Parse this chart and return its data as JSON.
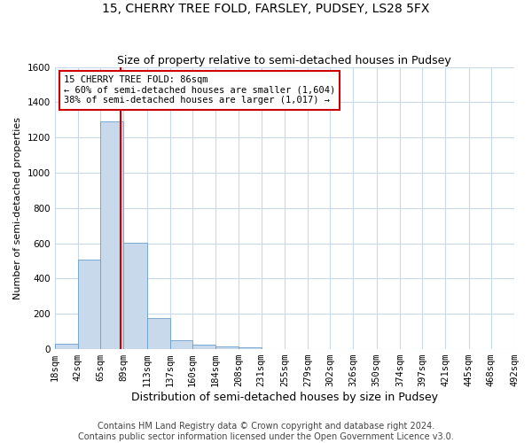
{
  "title": "15, CHERRY TREE FOLD, FARSLEY, PUDSEY, LS28 5FX",
  "subtitle": "Size of property relative to semi-detached houses in Pudsey",
  "xlabel": "Distribution of semi-detached houses by size in Pudsey",
  "ylabel": "Number of semi-detached properties",
  "footnote1": "Contains HM Land Registry data © Crown copyright and database right 2024.",
  "footnote2": "Contains public sector information licensed under the Open Government Licence v3.0.",
  "bin_labels": [
    "18sqm",
    "42sqm",
    "65sqm",
    "89sqm",
    "113sqm",
    "137sqm",
    "160sqm",
    "184sqm",
    "208sqm",
    "231sqm",
    "255sqm",
    "279sqm",
    "302sqm",
    "326sqm",
    "350sqm",
    "374sqm",
    "397sqm",
    "421sqm",
    "445sqm",
    "468sqm",
    "492sqm"
  ],
  "bin_edges": [
    18,
    42,
    65,
    89,
    113,
    137,
    160,
    184,
    208,
    231,
    255,
    279,
    302,
    326,
    350,
    374,
    397,
    421,
    445,
    468,
    492
  ],
  "bar_heights": [
    30,
    510,
    1290,
    605,
    175,
    50,
    25,
    15,
    12,
    0,
    0,
    0,
    0,
    0,
    0,
    0,
    0,
    0,
    0,
    0,
    0
  ],
  "bar_color": "#c8d9eb",
  "bar_edge_color": "#6a9fcb",
  "grid_color": "#c8d9eb",
  "property_size": 86,
  "property_line_color": "#cc0000",
  "annotation_line1": "15 CHERRY TREE FOLD: 86sqm",
  "annotation_line2": "← 60% of semi-detached houses are smaller (1,604)",
  "annotation_line3": "38% of semi-detached houses are larger (1,017) →",
  "annotation_box_color": "#cc0000",
  "ylim": [
    0,
    1600
  ],
  "yticks": [
    0,
    200,
    400,
    600,
    800,
    1000,
    1200,
    1400,
    1600
  ],
  "title_fontsize": 10,
  "subtitle_fontsize": 9,
  "annot_fontsize": 7.5,
  "xlabel_fontsize": 9,
  "ylabel_fontsize": 8,
  "tick_fontsize": 7.5,
  "footnote_fontsize": 7
}
